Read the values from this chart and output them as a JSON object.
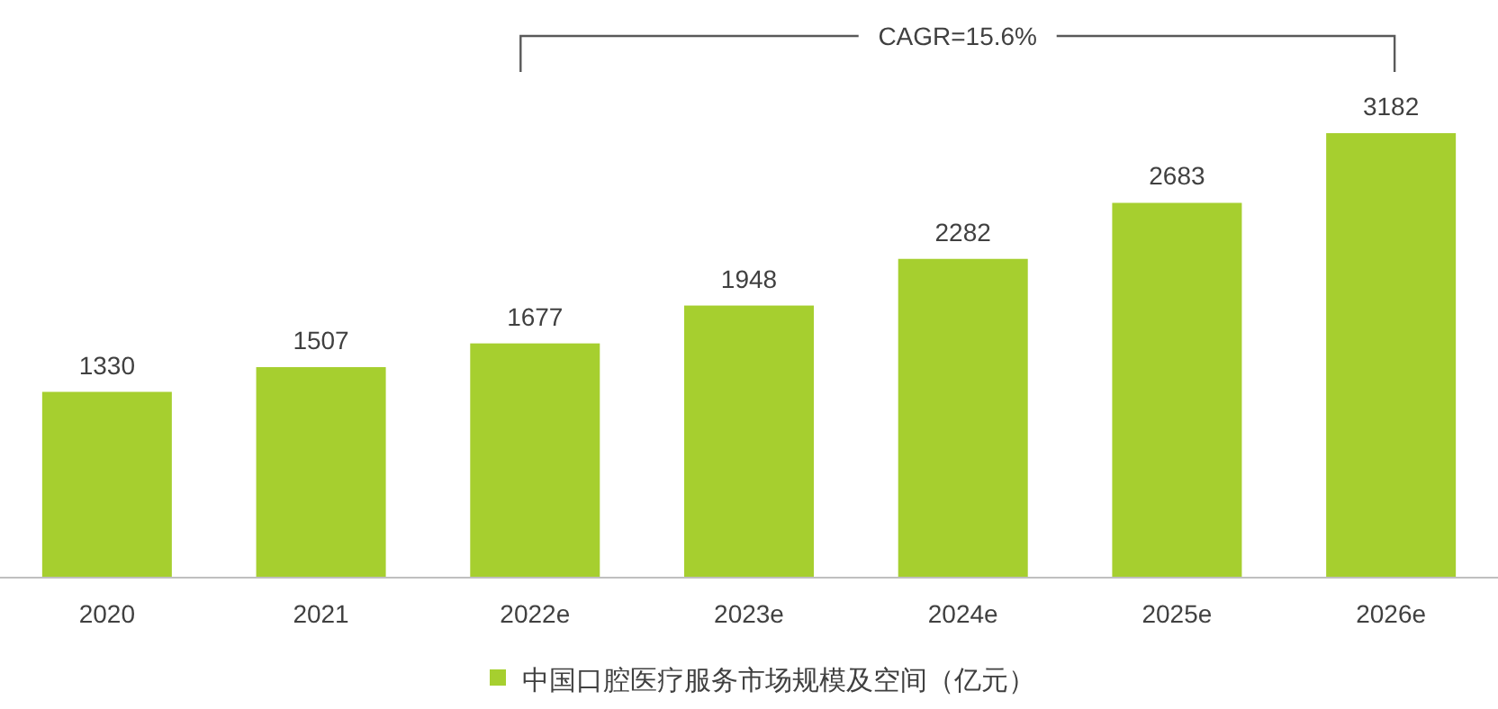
{
  "chart_data": {
    "type": "bar",
    "categories": [
      "2020",
      "2021",
      "2022e",
      "2023e",
      "2024e",
      "2025e",
      "2026e"
    ],
    "series": [
      {
        "name": "中国口腔医疗服务市场规模及空间（亿元）",
        "color": "#a6cf2f",
        "values": [
          1330,
          1507,
          1677,
          1948,
          2282,
          2683,
          3182
        ]
      }
    ],
    "data_labels": true,
    "legend": "bottom",
    "annotations": [
      "CAGR=15.6%"
    ]
  }
}
